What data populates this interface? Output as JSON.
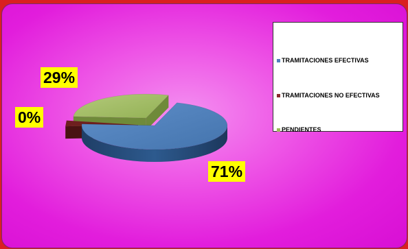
{
  "chart_data": {
    "type": "pie",
    "style": "3d-exploded",
    "categories": [
      "TRAMITACIONES EFECTIVAS",
      "TRAMITACIONES NO EFECTIVAS",
      "PENDIENTES"
    ],
    "values": [
      71,
      0,
      29
    ],
    "data_labels": [
      "71%",
      "0%",
      "29%"
    ],
    "colors": [
      "#4f81bd",
      "#8b2a2a",
      "#9bbb59"
    ],
    "legend": {
      "position": "right",
      "entries": [
        "TRAMITACIONES EFECTIVAS",
        "TRAMITACIONES NO EFECTIVAS",
        "PENDIENTES"
      ]
    },
    "title": ""
  },
  "colors": {
    "background": "#e21ddc",
    "frame": "#d92020",
    "label_background": "#ffff00"
  }
}
